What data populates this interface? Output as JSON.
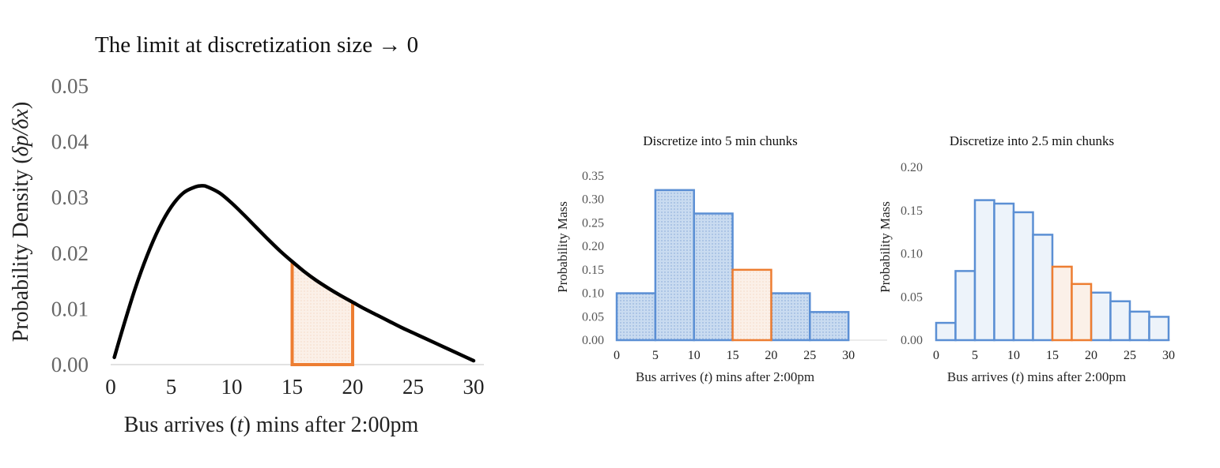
{
  "colors": {
    "blue": "#5b8fd4",
    "blue_fill": "#c5d8ef",
    "blue_fill_light": "#edf3fa",
    "orange": "#ed7d31",
    "orange_fill": "#fbf0e8",
    "curve": "#000000"
  },
  "chart_data": [
    {
      "type": "line",
      "title": "The limit at discretization size → 0",
      "xlabel_parts": [
        "Bus arrives (",
        "t",
        ") mins after 2:00pm"
      ],
      "ylabel_parts": [
        "Probability Density (",
        "δp/δx",
        ")"
      ],
      "xlim": [
        0,
        30
      ],
      "ylim": [
        0,
        0.05
      ],
      "xticks": [
        "0",
        "5",
        "10",
        "15",
        "20",
        "25",
        "30"
      ],
      "yticks": [
        "0.00",
        "0.01",
        "0.02",
        "0.03",
        "0.04",
        "0.05"
      ],
      "series": [
        {
          "x": [
            0.3,
            1,
            2,
            3,
            4,
            5,
            6,
            7,
            7.6,
            8,
            9,
            10,
            11,
            12,
            13,
            14,
            15,
            16,
            17,
            18,
            19,
            20,
            21,
            22,
            23,
            24,
            25,
            26,
            27,
            28,
            29,
            30
          ],
          "y": [
            0.0013,
            0.0065,
            0.0135,
            0.0195,
            0.0245,
            0.0283,
            0.0308,
            0.0319,
            0.0321,
            0.0319,
            0.0308,
            0.029,
            0.0269,
            0.0247,
            0.0225,
            0.0204,
            0.0185,
            0.0167,
            0.0151,
            0.0137,
            0.0124,
            0.0112,
            0.01,
            0.0089,
            0.0078,
            0.0067,
            0.0057,
            0.0047,
            0.0037,
            0.0027,
            0.0017,
            0.0007
          ]
        }
      ],
      "highlight": {
        "x_start": 15,
        "x_end": 20
      }
    },
    {
      "type": "bar",
      "title": "Discretize into 5 min chunks",
      "xlabel_parts": [
        "Bus arrives (",
        "t",
        ") mins after 2:00pm"
      ],
      "ylabel": "Probability Mass",
      "xlim": [
        0,
        35
      ],
      "ylim": [
        0,
        0.35
      ],
      "xticks": [
        "0",
        "5",
        "10",
        "15",
        "20",
        "25",
        "30"
      ],
      "yticks": [
        "0.00",
        "0.05",
        "0.10",
        "0.15",
        "0.20",
        "0.25",
        "0.30",
        "0.35"
      ],
      "bin_width": 5,
      "bin_starts": [
        0,
        5,
        10,
        15,
        20,
        25
      ],
      "values": [
        0.1,
        0.32,
        0.27,
        0.15,
        0.1,
        0.06
      ],
      "highlight_index": 3
    },
    {
      "type": "bar",
      "title": "Discretize into 2.5 min chunks",
      "xlabel_parts": [
        "Bus arrives (",
        "t",
        ") mins after 2:00pm"
      ],
      "ylabel": "Probability Mass",
      "xlim": [
        0,
        30
      ],
      "ylim": [
        0,
        0.2
      ],
      "xticks": [
        "0",
        "5",
        "10",
        "15",
        "20",
        "25",
        "30"
      ],
      "yticks": [
        "0.00",
        "0.05",
        "0.10",
        "0.15",
        "0.20"
      ],
      "bin_width": 2.5,
      "bin_starts": [
        0,
        2.5,
        5,
        7.5,
        10,
        12.5,
        15,
        17.5,
        20,
        22.5,
        25,
        27.5
      ],
      "values": [
        0.02,
        0.08,
        0.162,
        0.158,
        0.148,
        0.122,
        0.085,
        0.065,
        0.055,
        0.045,
        0.033,
        0.027
      ],
      "highlight_indices": [
        6,
        7
      ]
    }
  ]
}
